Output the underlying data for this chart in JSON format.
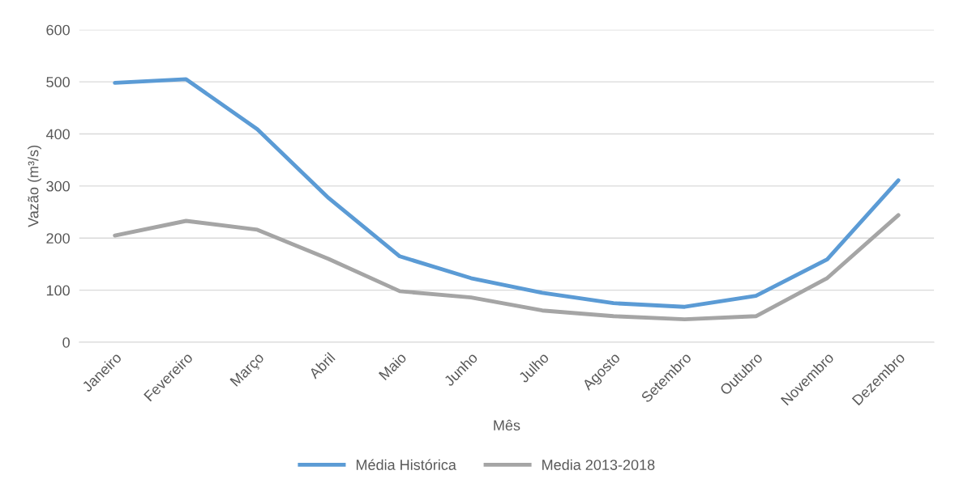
{
  "chart_data": {
    "type": "line",
    "xlabel": "Mês",
    "ylabel": "Vazão (m³/s)",
    "categories": [
      "Janeiro",
      "Fevereiro",
      "Março",
      "Abril",
      "Maio",
      "Junho",
      "Julho",
      "Agosto",
      "Setembro",
      "Outubro",
      "Novembro",
      "Dezembro"
    ],
    "series": [
      {
        "name": "Média Histórica",
        "color": "#5b9bd5",
        "values": [
          498,
          505,
          409,
          277,
          165,
          123,
          95,
          75,
          68,
          89,
          159,
          311
        ]
      },
      {
        "name": "Media 2013-2018",
        "color": "#a5a5a5",
        "values": [
          205,
          233,
          216,
          160,
          98,
          86,
          61,
          50,
          44,
          50,
          123,
          244
        ]
      }
    ],
    "ylim": [
      0,
      600
    ],
    "yticks": [
      0,
      100,
      200,
      300,
      400,
      500,
      600
    ],
    "grid": "y",
    "legend": "bottom",
    "marker": "none",
    "line_style": "solid"
  }
}
